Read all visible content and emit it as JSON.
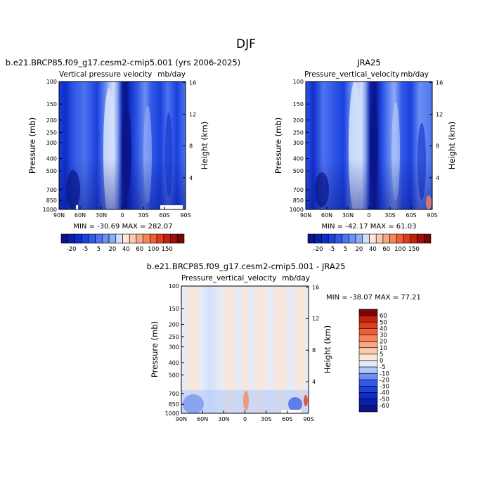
{
  "title": "DJF",
  "palette": {
    "blues": [
      "#0a1686",
      "#0b1fa8",
      "#0f2dc8",
      "#1a40dd",
      "#3158e6",
      "#4d73ee",
      "#6b8ff2",
      "#8eabf5",
      "#b2c7f8",
      "#d3e0fa"
    ],
    "neutral_low": "#e4ecfb",
    "neutral_high": "#fde6d6",
    "reds": [
      "#fde6d6",
      "#fbc9ad",
      "#f8a883",
      "#f5855a",
      "#ef5f36",
      "#e23d1a",
      "#c42010",
      "#9c0f0a",
      "#7a0505"
    ]
  },
  "chart_data": [
    {
      "id": "model",
      "type": "heatmap",
      "case_title": "b.e21.BRCP85.f09_g17.cesm2-cmip5.001 (yrs 2006-2025)",
      "left_string": "Vertical pressure velocity",
      "right_string": "mb/day",
      "ylabel": "Pressure (mb)",
      "y2label": "Height (km)",
      "x_ticks": [
        "90N",
        "60N",
        "30N",
        "0",
        "30S",
        "60S",
        "90S"
      ],
      "y_ticks": [
        "100",
        "150",
        "200",
        "250",
        "300",
        "400",
        "500",
        "700",
        "850",
        "1000"
      ],
      "y_tick_values": [
        100,
        150,
        200,
        250,
        300,
        400,
        500,
        700,
        850,
        1000
      ],
      "y2_ticks": [
        "16",
        "12",
        "8",
        "4"
      ],
      "y2_tick_values": [
        16,
        12,
        8,
        4
      ],
      "stats": "MIN = -30.69   MAX = 282.07",
      "levels": [
        "-20",
        "-5",
        "5",
        "20",
        "40",
        "60",
        "100",
        "150"
      ],
      "x_range": [
        90,
        -90
      ],
      "y_range": [
        100,
        1000
      ]
    },
    {
      "id": "obs",
      "type": "heatmap",
      "case_title": "JRA25",
      "left_string": "Pressure_vertical_velocity",
      "right_string": "mb/day",
      "ylabel": "Pressure (mb)",
      "y2label": "Height (km)",
      "x_ticks": [
        "90N",
        "60N",
        "30N",
        "0",
        "30S",
        "60S",
        "90S"
      ],
      "y_ticks": [
        "100",
        "150",
        "200",
        "250",
        "300",
        "400",
        "500",
        "700",
        "850",
        "1000"
      ],
      "y_tick_values": [
        100,
        150,
        200,
        250,
        300,
        400,
        500,
        700,
        850,
        1000
      ],
      "y2_ticks": [
        "16",
        "12",
        "8",
        "4"
      ],
      "y2_tick_values": [
        16,
        12,
        8,
        4
      ],
      "stats": "MIN = -42.17   MAX =  61.03",
      "levels": [
        "-20",
        "-5",
        "5",
        "20",
        "40",
        "60",
        "100",
        "150"
      ],
      "x_range": [
        90,
        -90
      ],
      "y_range": [
        100,
        1000
      ]
    },
    {
      "id": "diff",
      "type": "heatmap",
      "case_title": "b.e21.BRCP85.f09_g17.cesm2-cmip5.001 - JRA25",
      "left_string": "Pressure_vertical_velocity",
      "right_string": "mb/day",
      "ylabel": "Pressure (mb)",
      "y2label": "Height (km)",
      "x_ticks": [
        "90N",
        "60N",
        "30N",
        "0",
        "30S",
        "60S",
        "90S"
      ],
      "y_ticks": [
        "100",
        "150",
        "200",
        "250",
        "300",
        "400",
        "500",
        "700",
        "850",
        "1000"
      ],
      "y_tick_values": [
        100,
        150,
        200,
        250,
        300,
        400,
        500,
        700,
        850,
        1000
      ],
      "y2_ticks": [
        "16",
        "12",
        "8",
        "4"
      ],
      "y2_tick_values": [
        16,
        12,
        8,
        4
      ],
      "stats": "MIN = -38.07   MAX =  77.21",
      "levels": [
        "60",
        "50",
        "40",
        "30",
        "20",
        "10",
        "5",
        "0",
        "-5",
        "-10",
        "-20",
        "-30",
        "-40",
        "-50",
        "-60"
      ],
      "x_range": [
        90,
        -90
      ],
      "y_range": [
        100,
        1000
      ]
    }
  ]
}
